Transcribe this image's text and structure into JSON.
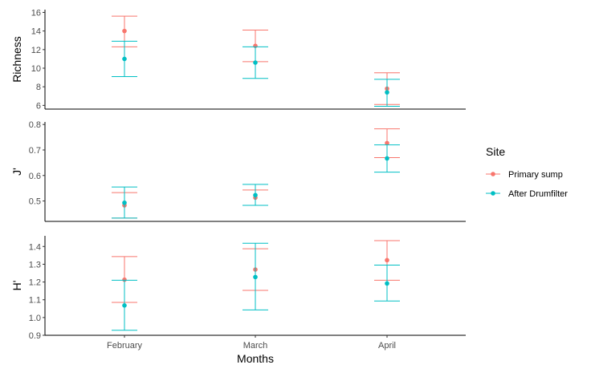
{
  "chart_data": {
    "type": "scatter",
    "xlabel": "Months",
    "categories": [
      "February",
      "March",
      "April"
    ],
    "legend": {
      "title": "Site",
      "placement": "right",
      "entries": [
        "Primary sump",
        "After Drumfilter"
      ]
    },
    "colors": {
      "Primary sump": "#F8766D",
      "After Drumfilter": "#00BFC4"
    },
    "grid": false,
    "panels": [
      {
        "ylabel": "Richness",
        "ylim": [
          5.6,
          16.3
        ],
        "yticks": [
          "6",
          "8",
          "10",
          "12",
          "14",
          "16"
        ],
        "series": [
          {
            "name": "Primary sump",
            "mean": [
              14.0,
              12.4,
              7.8
            ],
            "lower": [
              12.3,
              10.7,
              6.1
            ],
            "upper": [
              15.6,
              14.1,
              9.5
            ]
          },
          {
            "name": "After Drumfilter",
            "mean": [
              11.0,
              10.6,
              7.4
            ],
            "lower": [
              9.1,
              8.9,
              5.9
            ],
            "upper": [
              12.9,
              12.3,
              8.8
            ]
          }
        ]
      },
      {
        "ylabel": "J'",
        "ylim": [
          0.42,
          0.81
        ],
        "yticks": [
          "0.5",
          "0.6",
          "0.7",
          "0.8"
        ],
        "series": [
          {
            "name": "Primary sump",
            "mean": [
              0.483,
              0.513,
              0.727
            ],
            "lower": [
              0.433,
              0.483,
              0.67
            ],
            "upper": [
              0.533,
              0.543,
              0.783
            ]
          },
          {
            "name": "After Drumfilter",
            "mean": [
              0.493,
              0.523,
              0.667
            ],
            "lower": [
              0.433,
              0.483,
              0.613
            ],
            "upper": [
              0.555,
              0.565,
              0.72
            ]
          }
        ]
      },
      {
        "ylabel": "H'",
        "ylim": [
          0.9,
          1.46
        ],
        "yticks": [
          "0.9",
          "1.0",
          "1.1",
          "1.2",
          "1.3",
          "1.4"
        ],
        "series": [
          {
            "name": "Primary sump",
            "mean": [
              1.213,
              1.27,
              1.323
            ],
            "lower": [
              1.085,
              1.153,
              1.21
            ],
            "upper": [
              1.343,
              1.387,
              1.433
            ]
          },
          {
            "name": "After Drumfilter",
            "mean": [
              1.068,
              1.228,
              1.192
            ],
            "lower": [
              0.928,
              1.043,
              1.093
            ],
            "upper": [
              1.21,
              1.418,
              1.295
            ]
          }
        ]
      }
    ]
  }
}
